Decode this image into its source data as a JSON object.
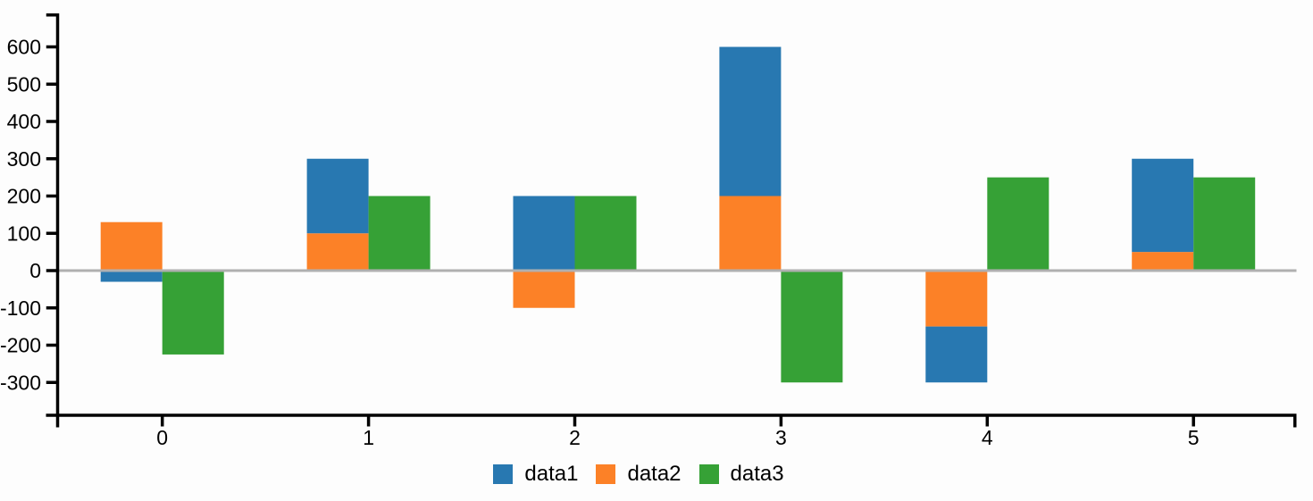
{
  "chart_data": {
    "type": "bar",
    "title": "",
    "xlabel": "",
    "ylabel": "",
    "categories": [
      "0",
      "1",
      "2",
      "3",
      "4",
      "5"
    ],
    "series": [
      {
        "name": "data1",
        "color": "#2878b1",
        "stack": "A",
        "values": [
          -30,
          200,
          200,
          400,
          -150,
          250
        ]
      },
      {
        "name": "data2",
        "color": "#fc8127",
        "stack": "A",
        "values": [
          130,
          100,
          -100,
          200,
          -150,
          50
        ]
      },
      {
        "name": "data3",
        "color": "#36a136",
        "stack": null,
        "values": [
          -225,
          200,
          200,
          -300,
          250,
          250
        ]
      }
    ],
    "stacking": "data1 and data2 share one stacked bar (data2 nearest the zero line, data1 stacked outward); data3 is a separate bar to the right of the stack",
    "yticks": [
      600,
      500,
      400,
      300,
      200,
      100,
      0,
      -100,
      -200,
      -300
    ],
    "ytick_labels": [
      "600",
      "500",
      "400",
      "300",
      "200",
      "100",
      "0",
      "-100",
      "-200",
      "-300"
    ],
    "ylim": [
      -300,
      600
    ],
    "grid": false,
    "zero_line": true,
    "legend_position": "bottom",
    "colors": {
      "axis": "#000000",
      "zero_line": "#b0b0b0",
      "background": "#fdfdfd",
      "label_text": "#000000"
    }
  }
}
